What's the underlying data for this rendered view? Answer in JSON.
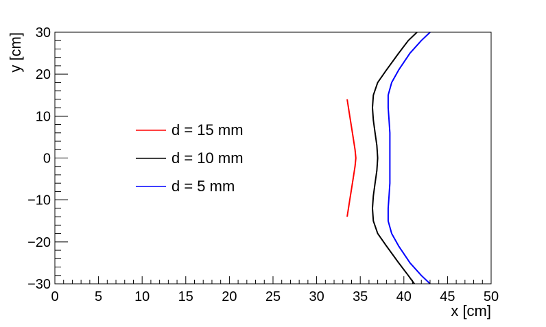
{
  "chart_data": {
    "type": "line",
    "title": "",
    "xlabel": "x [cm]",
    "ylabel": "y [cm]",
    "xlim": [
      0,
      50
    ],
    "ylim": [
      -30,
      30
    ],
    "x_ticks": [
      0,
      5,
      10,
      15,
      20,
      25,
      30,
      35,
      40,
      45,
      50
    ],
    "y_ticks": [
      -30,
      -20,
      -10,
      0,
      10,
      20,
      30
    ],
    "x_tick_labels": [
      "0",
      "5",
      "10",
      "15",
      "20",
      "25",
      "30",
      "35",
      "40",
      "45",
      "50"
    ],
    "y_tick_labels": [
      "−30",
      "−20",
      "−10",
      "0",
      "10",
      "20",
      "30"
    ],
    "grid": false,
    "legend_position": "center-left",
    "series": [
      {
        "name": "d = 15 mm",
        "color": "#ff0000",
        "x": [
          33.5,
          33.8,
          34.1,
          34.4,
          34.5,
          34.4,
          34.1,
          33.8,
          33.5
        ],
        "y": [
          -14,
          -10,
          -6,
          -2,
          0,
          2,
          6,
          10,
          14
        ]
      },
      {
        "name": "d = 10 mm",
        "color": "#000000",
        "x": [
          41.2,
          40.5,
          39.4,
          38.0,
          37.0,
          36.5,
          36.4,
          36.5,
          36.7,
          36.9,
          37.0,
          36.9,
          36.7,
          36.5,
          36.4,
          36.5,
          37.0,
          38.0,
          39.4,
          40.5,
          41.5
        ],
        "y": [
          -30,
          -28,
          -25,
          -21,
          -18,
          -15,
          -12,
          -9,
          -6,
          -3,
          0,
          3,
          6,
          9,
          12,
          15,
          18,
          21,
          25,
          28,
          30
        ]
      },
      {
        "name": "d = 5 mm",
        "color": "#0000ff",
        "x": [
          43.0,
          42.0,
          40.7,
          39.4,
          38.6,
          38.2,
          38.2,
          38.3,
          38.4,
          38.4,
          38.4,
          38.4,
          38.4,
          38.3,
          38.2,
          38.2,
          38.6,
          39.4,
          40.7,
          42.0,
          43.0
        ],
        "y": [
          -30,
          -28,
          -25,
          -21,
          -18,
          -15,
          -12,
          -9,
          -6,
          -3,
          0,
          3,
          6,
          9,
          12,
          15,
          18,
          21,
          25,
          28,
          30
        ]
      }
    ]
  }
}
